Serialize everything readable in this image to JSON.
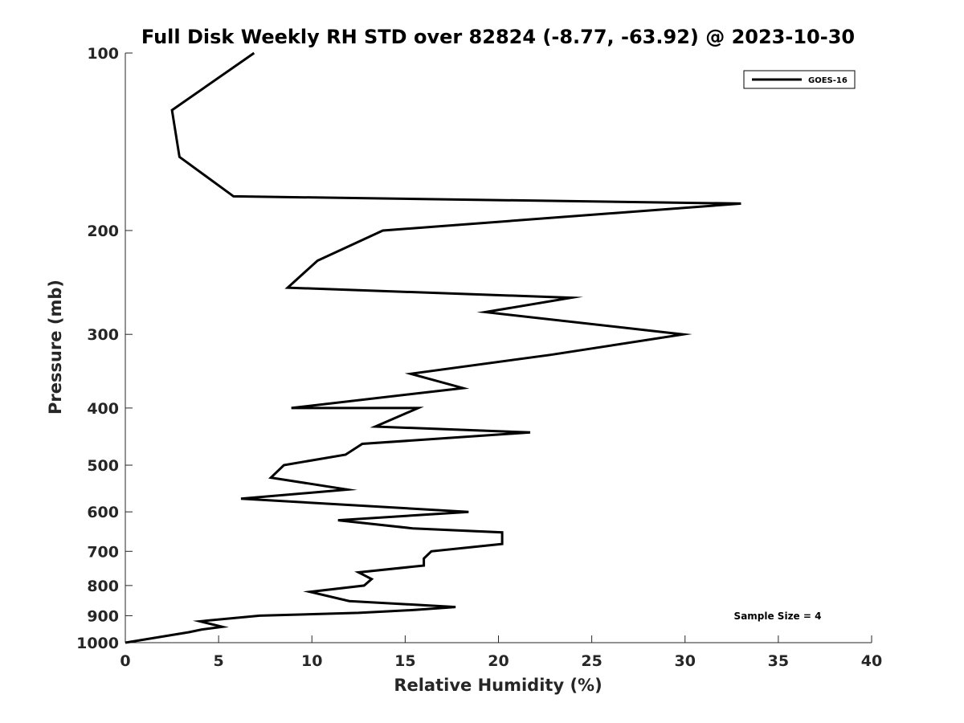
{
  "chart_data": {
    "type": "line",
    "title": "Full Disk Weekly RH STD over 82824 (-8.77, -63.92) @ 2023-10-30",
    "xlabel": "Relative Humidity (%)",
    "ylabel": "Pressure (mb)",
    "xlim": [
      0,
      40
    ],
    "ylim": [
      100,
      1000
    ],
    "yscale": "log",
    "yreversed": true,
    "grid": false,
    "legend_position": "top-right",
    "x_ticks": [
      0,
      5,
      10,
      15,
      20,
      25,
      30,
      35,
      40
    ],
    "x_tick_labels": [
      "0",
      "5",
      "10",
      "15",
      "20",
      "25",
      "30",
      "35",
      "40"
    ],
    "y_ticks": [
      100,
      200,
      300,
      400,
      500,
      600,
      700,
      800,
      900,
      1000
    ],
    "y_tick_labels": [
      "100",
      "200",
      "300",
      "400",
      "500",
      "600",
      "700",
      "800",
      "900",
      "1000"
    ],
    "series": [
      {
        "name": "GOES-16",
        "color": "#000000",
        "points": [
          [
            6.9,
            100
          ],
          [
            2.5,
            125
          ],
          [
            2.9,
            150
          ],
          [
            5.8,
            175
          ],
          [
            33.0,
            180
          ],
          [
            13.8,
            200
          ],
          [
            10.3,
            225
          ],
          [
            8.7,
            250
          ],
          [
            23.9,
            260
          ],
          [
            19.3,
            275
          ],
          [
            29.9,
            300
          ],
          [
            22.8,
            325
          ],
          [
            15.3,
            350
          ],
          [
            18.1,
            370
          ],
          [
            8.9,
            400
          ],
          [
            15.7,
            400
          ],
          [
            13.4,
            430
          ],
          [
            21.7,
            440
          ],
          [
            12.7,
            460
          ],
          [
            11.8,
            480
          ],
          [
            8.5,
            500
          ],
          [
            7.8,
            525
          ],
          [
            11.9,
            550
          ],
          [
            6.2,
            570
          ],
          [
            18.4,
            600
          ],
          [
            11.4,
            620
          ],
          [
            15.4,
            640
          ],
          [
            20.2,
            650
          ],
          [
            20.2,
            680
          ],
          [
            16.4,
            700
          ],
          [
            16.0,
            720
          ],
          [
            16.0,
            740
          ],
          [
            12.5,
            760
          ],
          [
            13.2,
            780
          ],
          [
            12.8,
            800
          ],
          [
            9.9,
            820
          ],
          [
            12.0,
            850
          ],
          [
            17.7,
            870
          ],
          [
            15.5,
            880
          ],
          [
            12.5,
            890
          ],
          [
            7.2,
            900
          ],
          [
            4.0,
            920
          ],
          [
            5.2,
            940
          ],
          [
            4.1,
            950
          ],
          [
            3.4,
            960
          ],
          [
            0.0,
            1000
          ]
        ]
      }
    ],
    "annotation": "Sample Size = 4"
  }
}
